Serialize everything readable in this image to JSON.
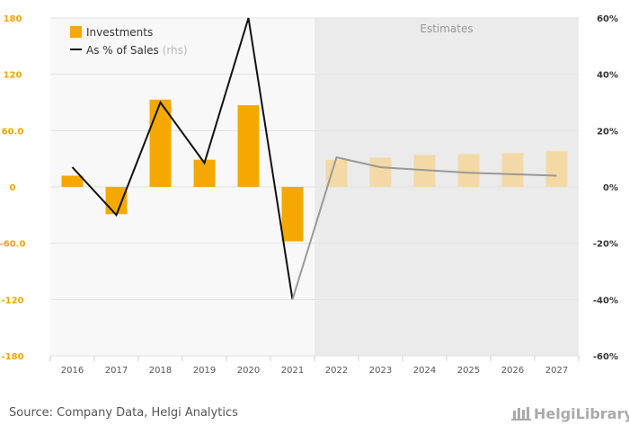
{
  "chart_data": {
    "type": "bar",
    "categories": [
      "2016",
      "2017",
      "2018",
      "2019",
      "2020",
      "2021",
      "2022",
      "2023",
      "2024",
      "2025",
      "2026",
      "2027"
    ],
    "series": [
      {
        "name": "Investments",
        "axis": "left",
        "values": [
          12,
          -29,
          93,
          29,
          87,
          -58,
          29,
          31,
          34,
          35,
          36,
          38
        ],
        "color": "#f5a800",
        "estimate_color": "#f3d9a6"
      },
      {
        "name": "As % of Sales",
        "type": "line",
        "axis": "right",
        "values": [
          7,
          -10,
          30,
          8.5,
          60,
          -40,
          10.5,
          7,
          6,
          5,
          4.5,
          4
        ],
        "color": "#111111",
        "estimate_color": "#999999"
      }
    ],
    "left_axis": {
      "ylim": [
        -180,
        180
      ],
      "ticks": [
        "180",
        "120",
        "60.0",
        "0",
        "-60.0",
        "-120",
        "-180"
      ],
      "tick_values": [
        180,
        120,
        60,
        0,
        -60,
        -120,
        -180
      ]
    },
    "right_axis": {
      "ylim": [
        -60,
        60
      ],
      "ticks": [
        "60%",
        "40%",
        "20%",
        "0%",
        "-20%",
        "-40%",
        "-60%"
      ],
      "tick_values": [
        60,
        40,
        20,
        0,
        -20,
        -40,
        -60
      ]
    },
    "estimates_from": "2022",
    "estimates_label": "Estimates",
    "legend": {
      "placement": "top-left",
      "investments_label": "Investments",
      "ratio_label": "As % of Sales",
      "ratio_suffix": "(rhs)"
    },
    "grid": true
  },
  "footer": {
    "source": "Source: Company Data, Helgi Analytics",
    "logo": "HelgiLibrary"
  },
  "colors": {
    "accent": "#f5a800",
    "plot_bg": "#f8f8f8",
    "estimate_bg": "#ebebeb"
  }
}
